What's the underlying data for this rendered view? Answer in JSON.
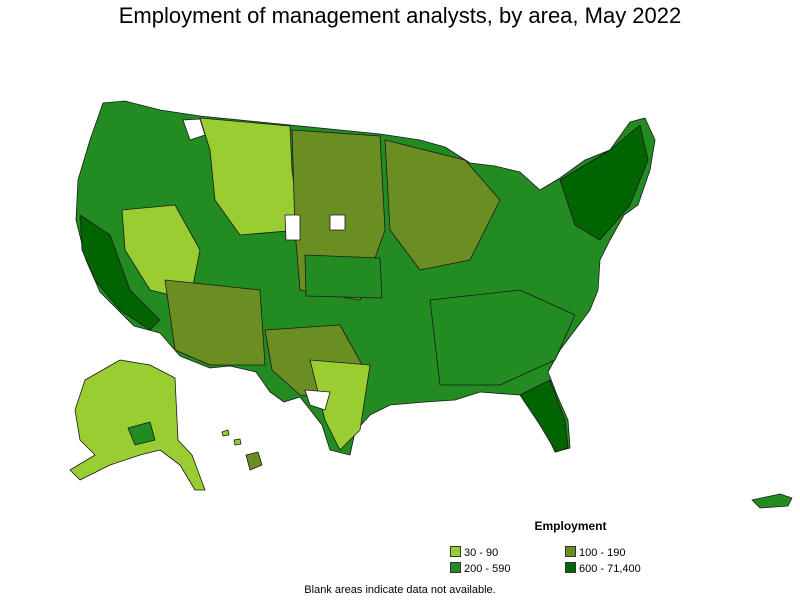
{
  "title": "Employment of management analysts, by area, May 2022",
  "legend": {
    "title": "Employment",
    "items": [
      {
        "label": "30 - 90",
        "color": "#9acd32"
      },
      {
        "label": "100 - 190",
        "color": "#6b8e23"
      },
      {
        "label": "200 - 590",
        "color": "#228b22"
      },
      {
        "label": "600 - 71,400",
        "color": "#006400"
      }
    ]
  },
  "footnote": "Blank areas indicate data not available."
}
